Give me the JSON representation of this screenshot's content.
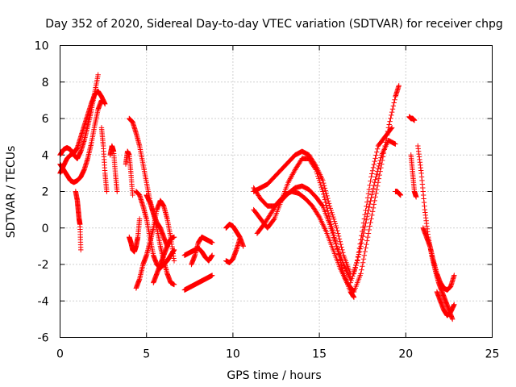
{
  "chart_data": {
    "type": "scatter",
    "title": "Day 352 of 2020, Sidereal Day-to-day VTEC variation (SDTVAR) for receiver chpg",
    "xlabel": "GPS time / hours",
    "ylabel": "SDTVAR / TECUs",
    "xlim": [
      0,
      25
    ],
    "ylim": [
      -6,
      10
    ],
    "xticks": [
      0,
      5,
      10,
      15,
      20,
      25
    ],
    "yticks": [
      -6,
      -4,
      -2,
      0,
      2,
      4,
      6,
      8,
      10
    ],
    "grid": true,
    "marker": "+",
    "color": "#ff0000",
    "series": [
      {
        "name": "s1",
        "x": [
          0.0,
          0.2,
          0.4,
          0.6,
          0.8,
          1.0,
          1.2,
          1.4,
          1.6,
          1.8,
          2.0,
          2.2,
          2.4,
          2.6
        ],
        "y": [
          3.0,
          3.4,
          3.8,
          4.0,
          4.1,
          4.4,
          5.0,
          5.6,
          6.2,
          6.8,
          7.3,
          7.5,
          7.2,
          6.8
        ]
      },
      {
        "name": "s2",
        "x": [
          0.0,
          0.2,
          0.4,
          0.6,
          0.8,
          1.0,
          1.2,
          1.4,
          1.6,
          1.8,
          2.0,
          2.2
        ],
        "y": [
          4.0,
          4.3,
          4.4,
          4.3,
          4.0,
          3.8,
          4.2,
          4.8,
          5.6,
          6.4,
          7.4,
          8.4
        ]
      },
      {
        "name": "s3",
        "x": [
          0.0,
          0.2,
          0.4,
          0.6,
          0.8,
          1.0,
          1.2,
          1.4,
          1.6,
          1.8,
          2.0,
          2.2,
          2.4
        ],
        "y": [
          3.5,
          3.2,
          2.9,
          2.6,
          2.5,
          2.6,
          2.8,
          3.2,
          3.8,
          4.6,
          5.6,
          6.5,
          7.0
        ]
      },
      {
        "name": "s4",
        "x": [
          0.9,
          1.0,
          1.05,
          1.1,
          1.15,
          1.2
        ],
        "y": [
          2.0,
          1.5,
          1.0,
          0.5,
          0.2,
          -1.2
        ]
      },
      {
        "name": "s5",
        "x": [
          2.4,
          2.5,
          2.6,
          2.7
        ],
        "y": [
          5.5,
          4.5,
          3.0,
          2.0
        ]
      },
      {
        "name": "s6",
        "x": [
          2.9,
          3.0,
          3.1,
          3.2,
          3.3
        ],
        "y": [
          4.0,
          4.5,
          4.2,
          3.0,
          2.0
        ]
      },
      {
        "name": "s7",
        "x": [
          3.8,
          3.9,
          4.0,
          4.1,
          4.2
        ],
        "y": [
          3.5,
          4.2,
          4.0,
          3.0,
          1.8
        ]
      },
      {
        "name": "s8",
        "x": [
          4.0,
          4.2,
          4.4,
          4.6,
          4.8,
          5.0,
          5.2,
          5.4,
          5.6,
          5.8,
          6.0,
          6.2
        ],
        "y": [
          6.0,
          5.8,
          5.2,
          4.5,
          3.5,
          2.5,
          1.5,
          0.8,
          0.3,
          0.0,
          -0.5,
          -1.0
        ]
      },
      {
        "name": "s9",
        "x": [
          4.4,
          4.6,
          4.8,
          5.0,
          5.2,
          5.4,
          5.6,
          5.8,
          6.0,
          6.2,
          6.4,
          6.6
        ],
        "y": [
          2.0,
          1.8,
          1.2,
          0.5,
          -0.5,
          -1.5,
          -2.0,
          -2.2,
          -2.0,
          -1.8,
          -1.5,
          -1.2
        ]
      },
      {
        "name": "s10",
        "x": [
          4.0,
          4.1,
          4.2,
          4.3,
          4.4,
          4.5,
          4.6
        ],
        "y": [
          -0.5,
          -0.8,
          -1.2,
          -1.3,
          -1.0,
          -0.5,
          0.5
        ]
      },
      {
        "name": "s11",
        "x": [
          4.4,
          4.6,
          4.8,
          5.0,
          5.2,
          5.4,
          5.6,
          5.8,
          6.0,
          6.2,
          6.4,
          6.6
        ],
        "y": [
          -3.3,
          -2.8,
          -2.0,
          -1.5,
          -0.8,
          0.0,
          1.0,
          1.5,
          1.2,
          0.5,
          -0.5,
          -1.8
        ]
      },
      {
        "name": "s12",
        "x": [
          5.0,
          5.2,
          5.4,
          5.6,
          5.8,
          6.0,
          6.2,
          6.4,
          6.6
        ],
        "y": [
          1.8,
          1.4,
          0.8,
          0.0,
          -1.0,
          -1.8,
          -2.5,
          -3.0,
          -3.1
        ]
      },
      {
        "name": "s13",
        "x": [
          5.4,
          5.6,
          5.8,
          6.0,
          6.2,
          6.4,
          6.6
        ],
        "y": [
          -3.0,
          -2.5,
          -2.0,
          -1.5,
          -1.0,
          -0.6,
          -0.5
        ]
      },
      {
        "name": "s14",
        "x": [
          7.2,
          7.4,
          7.6,
          7.8,
          8.0,
          8.2,
          8.4,
          8.6,
          8.8
        ],
        "y": [
          -3.4,
          -3.3,
          -3.2,
          -3.1,
          -3.0,
          -2.9,
          -2.8,
          -2.7,
          -2.6
        ]
      },
      {
        "name": "s15",
        "x": [
          7.2,
          7.4,
          7.6,
          7.8,
          8.0,
          8.2,
          8.4,
          8.6,
          8.8
        ],
        "y": [
          -1.5,
          -1.4,
          -1.3,
          -1.2,
          -1.1,
          -1.3,
          -1.6,
          -1.8,
          -1.5
        ]
      },
      {
        "name": "s16",
        "x": [
          7.6,
          7.8,
          8.0,
          8.2,
          8.4,
          8.6,
          8.8
        ],
        "y": [
          -2.0,
          -1.5,
          -0.8,
          -0.5,
          -0.6,
          -0.7,
          -0.8
        ]
      },
      {
        "name": "s17",
        "x": [
          9.6,
          9.8,
          10.0,
          10.2,
          10.4,
          10.6
        ],
        "y": [
          0.0,
          0.2,
          0.1,
          -0.2,
          -0.5,
          -1.0
        ]
      },
      {
        "name": "s18",
        "x": [
          9.6,
          9.8,
          10.0,
          10.2,
          10.4
        ],
        "y": [
          -1.8,
          -1.9,
          -1.7,
          -1.2,
          -0.6
        ]
      },
      {
        "name": "s19",
        "x": [
          11.2,
          11.6,
          12.0,
          12.4,
          12.8,
          13.2,
          13.6,
          14.0,
          14.4,
          14.8,
          15.2,
          15.6,
          16.0,
          16.4,
          16.8,
          17.0
        ],
        "y": [
          1.0,
          0.5,
          0.0,
          0.5,
          1.5,
          2.5,
          3.2,
          3.8,
          3.8,
          3.2,
          2.0,
          0.5,
          -1.0,
          -2.5,
          -3.5,
          -3.8
        ]
      },
      {
        "name": "s20",
        "x": [
          11.2,
          11.6,
          12.0,
          12.4,
          12.8,
          13.2,
          13.6,
          14.0,
          14.4,
          14.8,
          15.2,
          15.6,
          16.0,
          16.4,
          16.8
        ],
        "y": [
          2.0,
          2.2,
          2.4,
          2.8,
          3.2,
          3.6,
          4.0,
          4.2,
          4.0,
          3.4,
          2.6,
          1.2,
          0.0,
          -1.5,
          -2.5
        ]
      },
      {
        "name": "s21",
        "x": [
          11.2,
          11.6,
          12.0,
          12.4,
          12.8,
          13.2,
          13.6,
          14.0,
          14.4,
          14.8,
          15.2,
          15.6,
          16.0,
          16.4,
          16.8
        ],
        "y": [
          2.2,
          1.6,
          1.2,
          1.2,
          1.5,
          1.9,
          2.2,
          2.3,
          2.1,
          1.7,
          1.2,
          0.2,
          -1.0,
          -2.0,
          -2.8
        ]
      },
      {
        "name": "s22",
        "x": [
          11.4,
          11.8,
          12.2,
          12.6,
          13.0,
          13.4,
          13.8,
          14.2,
          14.6,
          15.0,
          15.4,
          15.8,
          16.2,
          16.6,
          17.0
        ],
        "y": [
          -0.3,
          0.2,
          0.8,
          1.4,
          1.8,
          2.0,
          1.9,
          1.6,
          1.2,
          0.6,
          -0.2,
          -1.2,
          -2.2,
          -3.0,
          -3.5
        ]
      },
      {
        "name": "s23",
        "x": [
          17.0,
          17.4,
          17.8,
          18.2,
          18.6,
          19.0,
          19.4,
          19.6
        ],
        "y": [
          -3.5,
          -2.5,
          -0.5,
          1.5,
          3.5,
          5.5,
          7.2,
          7.8
        ]
      },
      {
        "name": "s24",
        "x": [
          16.8,
          17.2,
          17.6,
          18.0,
          18.4,
          18.8,
          19.2
        ],
        "y": [
          -3.0,
          -1.8,
          0.5,
          2.8,
          4.5,
          5.0,
          5.5
        ]
      },
      {
        "name": "s25",
        "x": [
          17.0,
          17.4,
          17.8,
          18.2,
          18.6,
          19.0,
          19.4
        ],
        "y": [
          -2.5,
          -1.0,
          0.8,
          2.5,
          4.0,
          4.8,
          4.6
        ]
      },
      {
        "name": "s26",
        "x": [
          19.4,
          19.5,
          19.6,
          19.7
        ],
        "y": [
          2.0,
          2.0,
          1.9,
          1.8
        ]
      },
      {
        "name": "s27",
        "x": [
          20.2,
          20.3,
          20.4,
          20.5
        ],
        "y": [
          6.1,
          6.0,
          6.0,
          5.9
        ]
      },
      {
        "name": "s28",
        "x": [
          20.3,
          20.4,
          20.5,
          20.6
        ],
        "y": [
          4.0,
          3.0,
          2.0,
          1.7
        ]
      },
      {
        "name": "s29",
        "x": [
          20.7,
          20.9,
          21.1,
          21.3,
          21.5,
          21.7,
          21.9,
          22.1,
          22.3,
          22.5,
          22.7
        ],
        "y": [
          4.5,
          3.0,
          1.0,
          -0.5,
          -1.5,
          -2.3,
          -3.0,
          -3.5,
          -4.0,
          -4.5,
          -5.0
        ]
      },
      {
        "name": "s30",
        "x": [
          21.0,
          21.2,
          21.4,
          21.6,
          21.8,
          22.0,
          22.2,
          22.4,
          22.6,
          22.8
        ],
        "y": [
          0.0,
          -0.5,
          -1.0,
          -1.8,
          -2.5,
          -3.0,
          -3.3,
          -3.4,
          -3.2,
          -2.6
        ]
      },
      {
        "name": "s31",
        "x": [
          21.8,
          22.0,
          22.2,
          22.4,
          22.6,
          22.8
        ],
        "y": [
          -3.5,
          -4.0,
          -4.5,
          -4.8,
          -4.6,
          -4.2
        ]
      }
    ]
  }
}
